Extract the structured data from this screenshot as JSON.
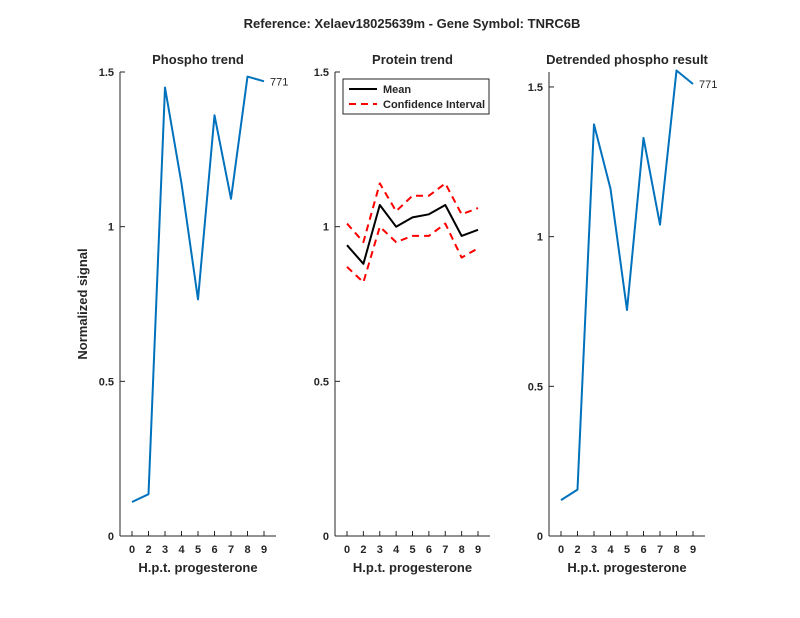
{
  "figure": {
    "suptitle": "Reference:  Xelaev18025639m - Gene Symbol:  TNRC6B"
  },
  "chart_data": [
    {
      "type": "line",
      "title": "Phospho trend",
      "xlabel": "H.p.t. progesterone",
      "ylabel": "Normalized signal",
      "x": [
        0,
        2,
        3,
        4,
        5,
        6,
        7,
        8,
        9
      ],
      "xticks": [
        "0",
        "2",
        "3",
        "4",
        "5",
        "6",
        "7",
        "8",
        "9"
      ],
      "ylim": [
        0,
        1.5
      ],
      "yticks": [
        0,
        0.5,
        1,
        1.5
      ],
      "yticklabels": [
        "0",
        "0.5",
        "1",
        "1.5"
      ],
      "series": [
        {
          "values": [
            0.11,
            0.135,
            1.45,
            1.14,
            0.765,
            1.36,
            1.09,
            1.485,
            1.47
          ],
          "color": "#0072BD",
          "style": "solid",
          "end_label": "771"
        }
      ],
      "grid": false
    },
    {
      "type": "line",
      "title": "Protein trend",
      "xlabel": "H.p.t. progesterone",
      "ylabel": "",
      "x": [
        0,
        2,
        3,
        4,
        5,
        6,
        7,
        8,
        9
      ],
      "xticks": [
        "0",
        "2",
        "3",
        "4",
        "5",
        "6",
        "7",
        "8",
        "9"
      ],
      "ylim": [
        0,
        1.5
      ],
      "yticks": [
        0,
        0.5,
        1,
        1.5
      ],
      "yticklabels": [
        "0",
        "0.5",
        "1",
        "1.5"
      ],
      "series": [
        {
          "name": "Mean",
          "values": [
            0.94,
            0.88,
            1.07,
            1.0,
            1.03,
            1.04,
            1.07,
            0.97,
            0.99
          ],
          "color": "#000000",
          "style": "solid"
        },
        {
          "name": "Confidence Interval",
          "values": [
            1.01,
            0.95,
            1.14,
            1.05,
            1.1,
            1.1,
            1.14,
            1.04,
            1.06
          ],
          "color": "#FF0000",
          "style": "dashed"
        },
        {
          "values": [
            0.87,
            0.82,
            1.0,
            0.95,
            0.97,
            0.97,
            1.01,
            0.9,
            0.93
          ],
          "color": "#FF0000",
          "style": "dashed"
        }
      ],
      "legend": {
        "position": "top-left",
        "entries": [
          "Mean",
          "Confidence Interval"
        ]
      },
      "grid": false
    },
    {
      "type": "line",
      "title": "Detrended phospho result",
      "xlabel": "H.p.t. progesterone",
      "ylabel": "",
      "x": [
        0,
        2,
        3,
        4,
        5,
        6,
        7,
        8,
        9
      ],
      "xticks": [
        "0",
        "2",
        "3",
        "4",
        "5",
        "6",
        "7",
        "8",
        "9"
      ],
      "ylim": [
        0,
        1.55
      ],
      "yticks": [
        0,
        0.5,
        1,
        1.5
      ],
      "yticklabels": [
        "0",
        "0.5",
        "1",
        "1.5"
      ],
      "series": [
        {
          "values": [
            0.12,
            0.155,
            1.375,
            1.16,
            0.755,
            1.33,
            1.04,
            1.555,
            1.51
          ],
          "color": "#0072BD",
          "style": "solid",
          "end_label": "771"
        }
      ],
      "grid": false
    }
  ]
}
